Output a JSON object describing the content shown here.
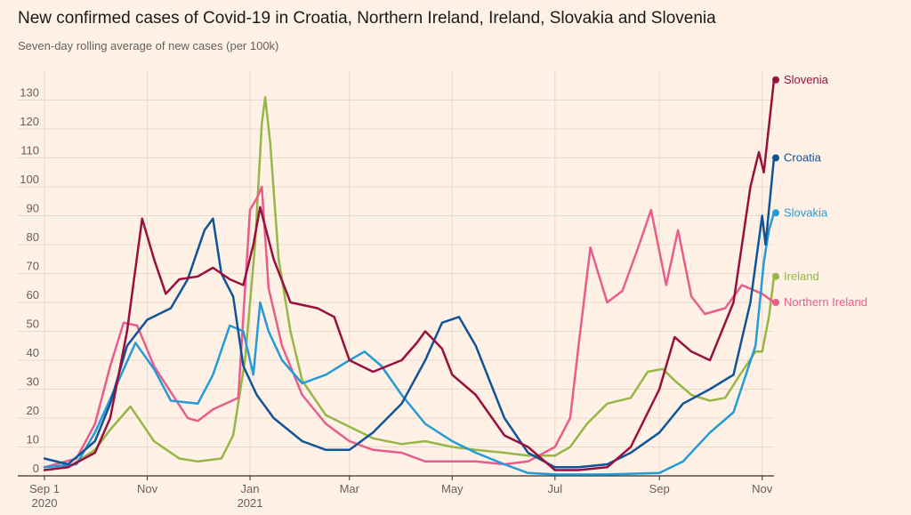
{
  "title": "New confirmed cases of Covid-19 in Croatia, Northern Ireland, Ireland, Slovakia and Slovenia",
  "subtitle": "Seven-day rolling average of new cases (per 100k)",
  "chart_data": {
    "type": "line",
    "title": "New confirmed cases of Covid-19 in Croatia, Northern Ireland, Ireland, Slovakia and Slovenia",
    "subtitle": "Seven-day rolling average of new cases (per 100k)",
    "ylim": [
      0,
      140
    ],
    "yticks": [
      0,
      10,
      20,
      30,
      40,
      50,
      60,
      70,
      80,
      90,
      100,
      110,
      120,
      130
    ],
    "xlim": [
      "2020-09-01",
      "2021-11-08"
    ],
    "xticks": [
      {
        "date": "2020-09-01",
        "label": "Sep 1",
        "sub": "2020"
      },
      {
        "date": "2020-11-01",
        "label": "Nov",
        "sub": ""
      },
      {
        "date": "2021-01-01",
        "label": "Jan",
        "sub": "2021"
      },
      {
        "date": "2021-03-01",
        "label": "Mar",
        "sub": ""
      },
      {
        "date": "2021-05-01",
        "label": "May",
        "sub": ""
      },
      {
        "date": "2021-07-01",
        "label": "Jul",
        "sub": ""
      },
      {
        "date": "2021-09-01",
        "label": "Sep",
        "sub": ""
      },
      {
        "date": "2021-11-01",
        "label": "Nov",
        "sub": ""
      }
    ],
    "grid": true,
    "legend": "direct labels at line ends (right)",
    "series": [
      {
        "name": "Ireland",
        "color": "#96b746",
        "points": [
          [
            "2020-09-01",
            2
          ],
          [
            "2020-09-15",
            3
          ],
          [
            "2020-10-01",
            9
          ],
          [
            "2020-10-10",
            16
          ],
          [
            "2020-10-22",
            24
          ],
          [
            "2020-11-05",
            12
          ],
          [
            "2020-11-20",
            6
          ],
          [
            "2020-12-01",
            5
          ],
          [
            "2020-12-15",
            6
          ],
          [
            "2020-12-22",
            14
          ],
          [
            "2020-12-29",
            40
          ],
          [
            "2021-01-04",
            80
          ],
          [
            "2021-01-08",
            122
          ],
          [
            "2021-01-10",
            131
          ],
          [
            "2021-01-13",
            115
          ],
          [
            "2021-01-18",
            75
          ],
          [
            "2021-01-25",
            50
          ],
          [
            "2021-02-01",
            33
          ],
          [
            "2021-02-15",
            21
          ],
          [
            "2021-03-01",
            17
          ],
          [
            "2021-03-15",
            13
          ],
          [
            "2021-04-01",
            11
          ],
          [
            "2021-04-15",
            12
          ],
          [
            "2021-05-01",
            10
          ],
          [
            "2021-05-15",
            9
          ],
          [
            "2021-06-01",
            8
          ],
          [
            "2021-06-15",
            7
          ],
          [
            "2021-07-01",
            7
          ],
          [
            "2021-07-10",
            10
          ],
          [
            "2021-07-20",
            18
          ],
          [
            "2021-08-01",
            25
          ],
          [
            "2021-08-15",
            27
          ],
          [
            "2021-08-25",
            36
          ],
          [
            "2021-09-03",
            37
          ],
          [
            "2021-09-10",
            33
          ],
          [
            "2021-09-20",
            28
          ],
          [
            "2021-10-01",
            26
          ],
          [
            "2021-10-10",
            27
          ],
          [
            "2021-10-20",
            36
          ],
          [
            "2021-10-28",
            43
          ],
          [
            "2021-11-01",
            43
          ],
          [
            "2021-11-05",
            55
          ],
          [
            "2021-11-08",
            69
          ]
        ]
      },
      {
        "name": "Northern Ireland",
        "color": "#e95d8c",
        "points": [
          [
            "2020-09-01",
            3
          ],
          [
            "2020-09-20",
            6
          ],
          [
            "2020-10-01",
            18
          ],
          [
            "2020-10-10",
            38
          ],
          [
            "2020-10-18",
            53
          ],
          [
            "2020-10-26",
            52
          ],
          [
            "2020-11-05",
            38
          ],
          [
            "2020-11-15",
            29
          ],
          [
            "2020-11-25",
            20
          ],
          [
            "2020-12-01",
            19
          ],
          [
            "2020-12-10",
            23
          ],
          [
            "2020-12-25",
            27
          ],
          [
            "2021-01-01",
            92
          ],
          [
            "2021-01-05",
            96
          ],
          [
            "2021-01-08",
            100
          ],
          [
            "2021-01-12",
            65
          ],
          [
            "2021-01-20",
            45
          ],
          [
            "2021-02-01",
            28
          ],
          [
            "2021-02-15",
            18
          ],
          [
            "2021-03-01",
            12
          ],
          [
            "2021-03-15",
            9
          ],
          [
            "2021-04-01",
            8
          ],
          [
            "2021-04-15",
            5
          ],
          [
            "2021-05-01",
            5
          ],
          [
            "2021-05-15",
            5
          ],
          [
            "2021-06-01",
            4
          ],
          [
            "2021-06-15",
            5
          ],
          [
            "2021-07-01",
            10
          ],
          [
            "2021-07-10",
            20
          ],
          [
            "2021-07-15",
            45
          ],
          [
            "2021-07-22",
            79
          ],
          [
            "2021-08-01",
            60
          ],
          [
            "2021-08-10",
            64
          ],
          [
            "2021-08-20",
            80
          ],
          [
            "2021-08-27",
            92
          ],
          [
            "2021-09-05",
            66
          ],
          [
            "2021-09-12",
            85
          ],
          [
            "2021-09-20",
            62
          ],
          [
            "2021-09-28",
            56
          ],
          [
            "2021-10-10",
            58
          ],
          [
            "2021-10-20",
            66
          ],
          [
            "2021-11-01",
            63
          ],
          [
            "2021-11-08",
            60
          ]
        ]
      },
      {
        "name": "Slovakia",
        "color": "#259ad8",
        "points": [
          [
            "2020-09-01",
            3
          ],
          [
            "2020-09-20",
            4
          ],
          [
            "2020-10-01",
            15
          ],
          [
            "2020-10-15",
            33
          ],
          [
            "2020-10-25",
            46
          ],
          [
            "2020-11-05",
            37
          ],
          [
            "2020-11-15",
            26
          ],
          [
            "2020-12-01",
            25
          ],
          [
            "2020-12-10",
            35
          ],
          [
            "2020-12-20",
            52
          ],
          [
            "2020-12-28",
            50
          ],
          [
            "2021-01-03",
            35
          ],
          [
            "2021-01-07",
            60
          ],
          [
            "2021-01-12",
            50
          ],
          [
            "2021-01-20",
            40
          ],
          [
            "2021-02-01",
            32
          ],
          [
            "2021-02-15",
            35
          ],
          [
            "2021-03-01",
            40
          ],
          [
            "2021-03-10",
            43
          ],
          [
            "2021-03-20",
            38
          ],
          [
            "2021-04-01",
            28
          ],
          [
            "2021-04-15",
            18
          ],
          [
            "2021-05-01",
            12
          ],
          [
            "2021-05-15",
            8
          ],
          [
            "2021-06-01",
            4
          ],
          [
            "2021-06-15",
            1
          ],
          [
            "2021-07-01",
            0.5
          ],
          [
            "2021-08-01",
            0.5
          ],
          [
            "2021-09-01",
            1
          ],
          [
            "2021-09-15",
            5
          ],
          [
            "2021-10-01",
            15
          ],
          [
            "2021-10-15",
            22
          ],
          [
            "2021-10-28",
            45
          ],
          [
            "2021-11-02",
            74
          ],
          [
            "2021-11-05",
            85
          ],
          [
            "2021-11-08",
            91
          ]
        ]
      },
      {
        "name": "Croatia",
        "color": "#0f5499",
        "points": [
          [
            "2020-09-01",
            6
          ],
          [
            "2020-09-15",
            4
          ],
          [
            "2020-10-01",
            12
          ],
          [
            "2020-10-10",
            25
          ],
          [
            "2020-10-20",
            45
          ],
          [
            "2020-11-01",
            54
          ],
          [
            "2020-11-15",
            58
          ],
          [
            "2020-11-25",
            68
          ],
          [
            "2020-12-05",
            85
          ],
          [
            "2020-12-10",
            89
          ],
          [
            "2020-12-15",
            70
          ],
          [
            "2020-12-22",
            62
          ],
          [
            "2020-12-28",
            38
          ],
          [
            "2021-01-05",
            28
          ],
          [
            "2021-01-15",
            20
          ],
          [
            "2021-02-01",
            12
          ],
          [
            "2021-02-15",
            9
          ],
          [
            "2021-03-01",
            9
          ],
          [
            "2021-03-15",
            15
          ],
          [
            "2021-04-01",
            25
          ],
          [
            "2021-04-15",
            40
          ],
          [
            "2021-04-25",
            53
          ],
          [
            "2021-05-05",
            55
          ],
          [
            "2021-05-15",
            45
          ],
          [
            "2021-06-01",
            20
          ],
          [
            "2021-06-15",
            8
          ],
          [
            "2021-07-01",
            3
          ],
          [
            "2021-07-15",
            3
          ],
          [
            "2021-08-01",
            4
          ],
          [
            "2021-08-15",
            8
          ],
          [
            "2021-09-01",
            15
          ],
          [
            "2021-09-15",
            25
          ],
          [
            "2021-10-01",
            30
          ],
          [
            "2021-10-15",
            35
          ],
          [
            "2021-10-25",
            60
          ],
          [
            "2021-11-01",
            90
          ],
          [
            "2021-11-03",
            80
          ],
          [
            "2021-11-08",
            110
          ]
        ]
      },
      {
        "name": "Slovenia",
        "color": "#990f3d",
        "points": [
          [
            "2020-09-01",
            2
          ],
          [
            "2020-09-15",
            3
          ],
          [
            "2020-10-01",
            8
          ],
          [
            "2020-10-10",
            20
          ],
          [
            "2020-10-20",
            50
          ],
          [
            "2020-10-29",
            89
          ],
          [
            "2020-11-05",
            75
          ],
          [
            "2020-11-12",
            63
          ],
          [
            "2020-11-20",
            68
          ],
          [
            "2020-12-01",
            69
          ],
          [
            "2020-12-10",
            72
          ],
          [
            "2020-12-20",
            68
          ],
          [
            "2020-12-28",
            66
          ],
          [
            "2021-01-03",
            80
          ],
          [
            "2021-01-07",
            93
          ],
          [
            "2021-01-15",
            75
          ],
          [
            "2021-01-25",
            60
          ],
          [
            "2021-02-10",
            58
          ],
          [
            "2021-02-20",
            55
          ],
          [
            "2021-03-01",
            40
          ],
          [
            "2021-03-15",
            36
          ],
          [
            "2021-04-01",
            40
          ],
          [
            "2021-04-10",
            46
          ],
          [
            "2021-04-15",
            50
          ],
          [
            "2021-04-25",
            44
          ],
          [
            "2021-05-01",
            35
          ],
          [
            "2021-05-15",
            28
          ],
          [
            "2021-06-01",
            14
          ],
          [
            "2021-06-15",
            10
          ],
          [
            "2021-07-01",
            2
          ],
          [
            "2021-07-15",
            2
          ],
          [
            "2021-08-01",
            3
          ],
          [
            "2021-08-15",
            10
          ],
          [
            "2021-09-01",
            30
          ],
          [
            "2021-09-10",
            48
          ],
          [
            "2021-09-20",
            43
          ],
          [
            "2021-10-01",
            40
          ],
          [
            "2021-10-15",
            60
          ],
          [
            "2021-10-25",
            100
          ],
          [
            "2021-10-30",
            112
          ],
          [
            "2021-11-02",
            105
          ],
          [
            "2021-11-08",
            137
          ]
        ]
      }
    ]
  }
}
